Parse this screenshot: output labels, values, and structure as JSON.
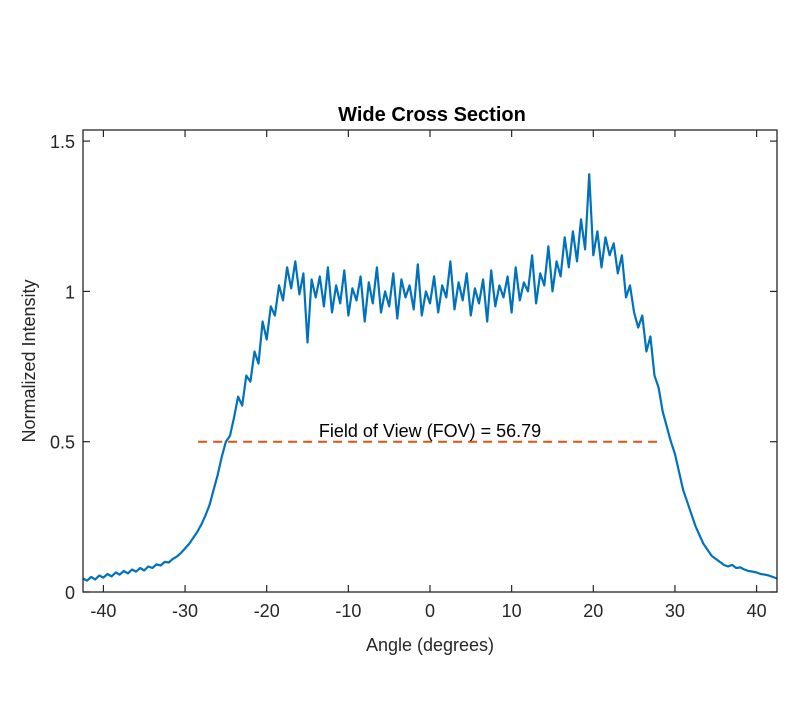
{
  "chart_data": {
    "type": "line",
    "title": "Wide Cross Section",
    "xlabel": "Angle (degrees)",
    "ylabel": "Normalized Intensity",
    "xlim": [
      -42.5,
      42.5
    ],
    "ylim": [
      0,
      1.537
    ],
    "grid": false,
    "xticks": [
      -40,
      -30,
      -20,
      -10,
      0,
      10,
      20,
      30,
      40
    ],
    "xtick_labels": [
      "-40",
      "-30",
      "-20",
      "-10",
      "0",
      "10",
      "20",
      "30",
      "40"
    ],
    "yticks": [
      0,
      0.5,
      1,
      1.5
    ],
    "ytick_labels": [
      "0",
      "0.5",
      "1",
      "1.5"
    ],
    "colors": {
      "series": "#0072BD",
      "fov_line": "#D95319",
      "axes": "#262626"
    },
    "series": [
      {
        "name": "Wide Cross Section",
        "x_start": -42.5,
        "x_step": 0.5,
        "values": [
          0.045,
          0.038,
          0.05,
          0.042,
          0.055,
          0.048,
          0.06,
          0.052,
          0.065,
          0.058,
          0.07,
          0.062,
          0.075,
          0.068,
          0.08,
          0.072,
          0.085,
          0.08,
          0.092,
          0.088,
          0.1,
          0.098,
          0.11,
          0.118,
          0.13,
          0.145,
          0.16,
          0.18,
          0.2,
          0.225,
          0.255,
          0.29,
          0.34,
          0.39,
          0.45,
          0.5,
          0.52,
          0.58,
          0.65,
          0.62,
          0.72,
          0.7,
          0.8,
          0.76,
          0.9,
          0.84,
          0.95,
          0.92,
          1.02,
          0.97,
          1.08,
          1.01,
          1.1,
          0.99,
          1.06,
          0.83,
          1.04,
          0.98,
          1.05,
          0.95,
          1.08,
          0.93,
          1.02,
          0.96,
          1.07,
          0.92,
          1.01,
          0.97,
          1.05,
          0.9,
          1.03,
          0.96,
          1.08,
          0.93,
          1.0,
          0.95,
          1.06,
          0.91,
          1.04,
          0.98,
          1.02,
          0.94,
          1.09,
          0.92,
          1.0,
          0.96,
          1.05,
          0.93,
          1.02,
          0.98,
          1.1,
          0.94,
          1.03,
          0.97,
          1.06,
          0.92,
          1.01,
          0.96,
          1.04,
          0.9,
          1.07,
          0.95,
          1.02,
          0.98,
          1.05,
          0.93,
          1.08,
          0.97,
          1.03,
          1.0,
          1.12,
          0.96,
          1.06,
          1.02,
          1.15,
          1.0,
          1.1,
          1.05,
          1.18,
          1.08,
          1.2,
          1.1,
          1.24,
          1.14,
          1.39,
          1.12,
          1.2,
          1.08,
          1.18,
          1.12,
          1.16,
          1.06,
          1.12,
          0.98,
          1.02,
          0.93,
          0.88,
          0.92,
          0.8,
          0.85,
          0.72,
          0.68,
          0.6,
          0.55,
          0.5,
          0.46,
          0.4,
          0.34,
          0.3,
          0.26,
          0.22,
          0.19,
          0.16,
          0.14,
          0.12,
          0.11,
          0.1,
          0.09,
          0.085,
          0.09,
          0.08,
          0.082,
          0.075,
          0.07,
          0.068,
          0.065,
          0.06,
          0.058,
          0.055,
          0.05,
          0.045
        ]
      }
    ],
    "fov": {
      "label": "Field of View (FOV) = 56.79",
      "value": 56.79,
      "level": 0.5,
      "x_from": -28.4,
      "x_to": 28.39
    }
  }
}
